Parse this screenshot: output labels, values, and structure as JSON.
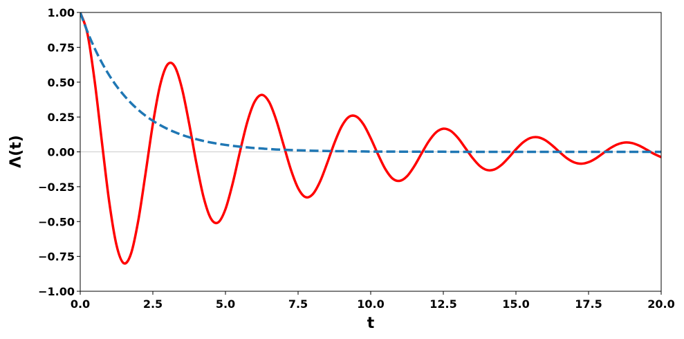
{
  "chart_data": {
    "type": "line",
    "x_label": "t",
    "y_label": "Λ(t)",
    "x": [
      0,
      0.25,
      0.5,
      0.75,
      1,
      1.25,
      1.5,
      1.75,
      2,
      2.25,
      2.5,
      2.75,
      3,
      3.25,
      3.5,
      3.75,
      4,
      4.25,
      4.5,
      4.75,
      5,
      5.25,
      5.5,
      5.75,
      6,
      6.25,
      6.5,
      6.75,
      7,
      7.25,
      7.5,
      7.75,
      8,
      8.25,
      8.5,
      8.75,
      9,
      9.25,
      9.5,
      9.75,
      10,
      10.25,
      10.5,
      10.75,
      11,
      11.25,
      11.5,
      11.75,
      12,
      12.25,
      12.5,
      12.75,
      13,
      13.25,
      13.5,
      13.75,
      14,
      14.25,
      14.5,
      14.75,
      15,
      15.25,
      15.5,
      15.75,
      16,
      16.25,
      16.5,
      16.75,
      17,
      17.25,
      17.5,
      17.75,
      18,
      18.25,
      18.5,
      18.75,
      19,
      19.25,
      19.5,
      19.75,
      20
    ],
    "series": [
      {
        "color": "#ff0000",
        "linestyle": "solid",
        "values": [
          1,
          0.847,
          0.503,
          0.064,
          -0.361,
          -0.67,
          -0.799,
          -0.729,
          -0.491,
          -0.153,
          0.199,
          0.478,
          0.625,
          0.614,
          0.457,
          0.203,
          -0.082,
          -0.328,
          -0.479,
          -0.506,
          -0.411,
          -0.225,
          0.002,
          0.213,
          0.358,
          0.409,
          0.359,
          0.227,
          0.05,
          -0.126,
          -0.26,
          -0.324,
          -0.305,
          -0.216,
          -0.082,
          0.063,
          0.183,
          0.251,
          0.254,
          0.198,
          0.098,
          -0.017,
          -0.122,
          -0.191,
          -0.208,
          -0.175,
          -0.103,
          -0.012,
          0.076,
          0.14,
          0.166,
          0.151,
          0.101,
          0.03,
          -0.042,
          -0.1,
          -0.13,
          -0.127,
          -0.094,
          -0.041,
          0.018,
          0.069,
          0.1,
          0.105,
          0.085,
          0.046,
          -0.001,
          -0.045,
          -0.075,
          -0.085,
          -0.074,
          -0.047,
          -0.01,
          0.027,
          0.054,
          0.067,
          0.063,
          0.044,
          0.016,
          -0.014,
          -0.038
        ]
      },
      {
        "color": "#1f77b4",
        "linestyle": "dashed",
        "values": [
          1,
          0.861,
          0.741,
          0.638,
          0.549,
          0.472,
          0.407,
          0.35,
          0.301,
          0.259,
          0.223,
          0.192,
          0.165,
          0.142,
          0.122,
          0.105,
          0.091,
          0.078,
          0.067,
          0.058,
          0.05,
          0.043,
          0.037,
          0.032,
          0.027,
          0.024,
          0.02,
          0.017,
          0.015,
          0.013,
          0.011,
          0.01,
          0.008,
          0.007,
          0.006,
          0.005,
          0.005,
          0.004,
          0.003,
          0.003,
          0.002,
          0.002,
          0.002,
          0.002,
          0.001,
          0.001,
          0.001,
          0.001,
          0.001,
          0.001,
          0.001,
          0,
          0,
          0,
          0,
          0,
          0,
          0,
          0,
          0,
          0,
          0,
          0,
          0,
          0,
          0,
          0,
          0,
          0,
          0,
          0,
          0,
          0,
          0,
          0,
          0,
          0,
          0,
          0,
          0,
          0
        ]
      }
    ],
    "xlim": [
      0,
      20
    ],
    "xticks": [
      {
        "value": 0,
        "label": "0.0"
      },
      {
        "value": 2.5,
        "label": "2.5"
      },
      {
        "value": 5,
        "label": "5.0"
      },
      {
        "value": 7.5,
        "label": "7.5"
      },
      {
        "value": 10,
        "label": "10.0"
      },
      {
        "value": 12.5,
        "label": "12.5"
      },
      {
        "value": 15,
        "label": "15.0"
      },
      {
        "value": 17.5,
        "label": "17.5"
      },
      {
        "value": 20,
        "label": "20.0"
      }
    ],
    "ylim": [
      -1,
      1
    ],
    "yticks": [
      {
        "value": -1,
        "label": "−1.00"
      },
      {
        "value": -0.75,
        "label": "−0.75"
      },
      {
        "value": -0.5,
        "label": "−0.50"
      },
      {
        "value": -0.25,
        "label": "−0.25"
      },
      {
        "value": 0,
        "label": "0.00"
      },
      {
        "value": 0.25,
        "label": "0.25"
      },
      {
        "value": 0.5,
        "label": "0.50"
      },
      {
        "value": 0.75,
        "label": "0.75"
      },
      {
        "value": 1,
        "label": "1.00"
      }
    ],
    "zero_line": true,
    "grid": false
  }
}
